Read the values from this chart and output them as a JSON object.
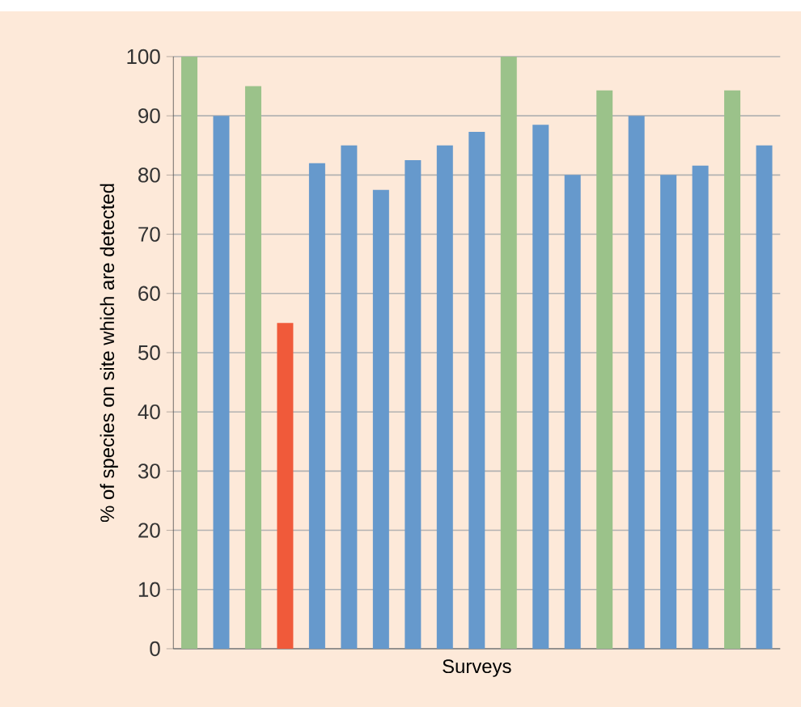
{
  "chart_data": {
    "type": "bar",
    "xlabel": "Surveys",
    "ylabel": "% of species on site which are detected",
    "categories": [
      null,
      null,
      null,
      null,
      null,
      null,
      null,
      null,
      null,
      null,
      null,
      null,
      null,
      null,
      null,
      null,
      null,
      null,
      null
    ],
    "values": [
      100,
      90,
      95,
      55,
      82,
      85,
      77.5,
      82.5,
      85,
      87.3,
      100,
      88.5,
      80,
      94.3,
      90,
      80,
      81.6,
      94.3,
      85
    ],
    "colors": [
      "#9bc28a",
      "#6699cc",
      "#9bc28a",
      "#f05a3a",
      "#6699cc",
      "#6699cc",
      "#6699cc",
      "#6699cc",
      "#6699cc",
      "#6699cc",
      "#9bc28a",
      "#6699cc",
      "#6699cc",
      "#9bc28a",
      "#6699cc",
      "#6699cc",
      "#6699cc",
      "#9bc28a",
      "#6699cc"
    ],
    "ylim": [
      0,
      100
    ],
    "yticks": [
      0,
      10,
      20,
      30,
      40,
      50,
      60,
      70,
      80,
      90,
      100
    ],
    "grid": "y"
  }
}
